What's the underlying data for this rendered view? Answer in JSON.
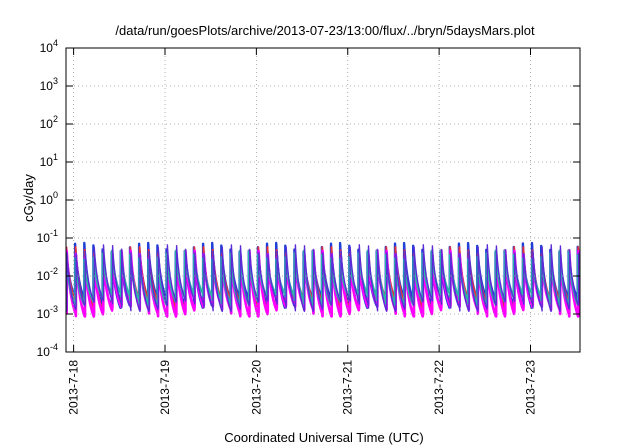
{
  "chart_data": {
    "type": "line",
    "title": "/data/run/goesPlots/archive/2013-07-23/13:00/flux/../bryn/5daysMars.plot",
    "xlabel": "Coordinated Universal Time (UTC)",
    "ylabel": "cGy/day",
    "yscale": "log",
    "ylim": [
      0.0001,
      10000
    ],
    "xlim": [
      "2013-07-17 22:00",
      "2013-07-23 13:00"
    ],
    "grid": true,
    "y_ticks": [
      {
        "base": "10",
        "exp": "-4"
      },
      {
        "base": "10",
        "exp": "-3"
      },
      {
        "base": "10",
        "exp": "-2"
      },
      {
        "base": "10",
        "exp": "-1"
      },
      {
        "base": "10",
        "exp": "0"
      },
      {
        "base": "10",
        "exp": "1"
      },
      {
        "base": "10",
        "exp": "2"
      },
      {
        "base": "10",
        "exp": "3"
      },
      {
        "base": "10",
        "exp": "4"
      }
    ],
    "x_ticks": [
      "2013-7-18",
      "2013-7-19",
      "2013-7-20",
      "2013-7-21",
      "2013-7-22",
      "2013-7-23"
    ],
    "series_colors": [
      "#1f3fd6",
      "#e8303a",
      "#ff00ff",
      "#2bb5a8",
      "#5b2bd6"
    ],
    "pattern": {
      "period_hours": 2.4,
      "peak_value": 0.04,
      "trough_value": 0.0012
    }
  }
}
